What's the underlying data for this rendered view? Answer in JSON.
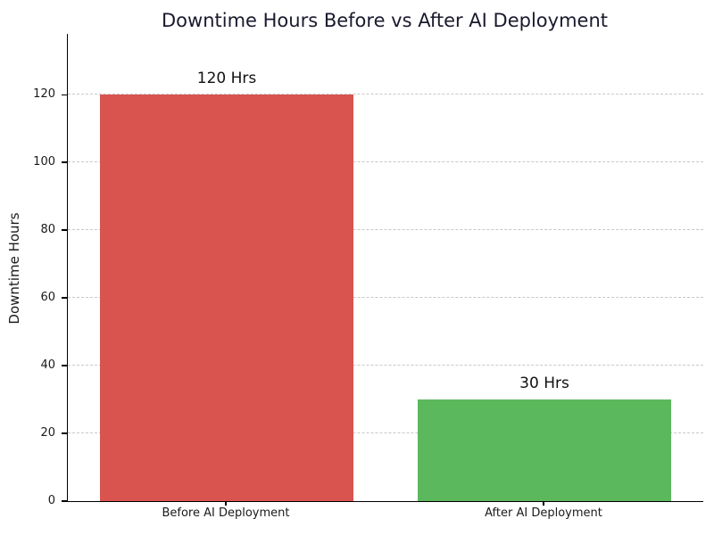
{
  "chart_data": {
    "type": "bar",
    "title": "Downtime Hours Before vs After AI Deployment",
    "categories": [
      "Before AI Deployment",
      "After AI Deployment"
    ],
    "values": [
      120,
      30
    ],
    "bar_labels": [
      "120 Hrs",
      "30 Hrs"
    ],
    "bar_colors": [
      "#d9534f",
      "#5cb85c"
    ],
    "xlabel": "",
    "ylabel": "Downtime Hours",
    "yticks": [
      0,
      20,
      40,
      60,
      80,
      100,
      120
    ],
    "ylim": [
      0,
      138
    ],
    "bar_width_fraction": 0.8,
    "grid": "horizontal-dashed",
    "grid_color": "#c8c8c8",
    "legend": "none",
    "title_color": "#1a1a2e",
    "spines": "left-bottom-only"
  }
}
